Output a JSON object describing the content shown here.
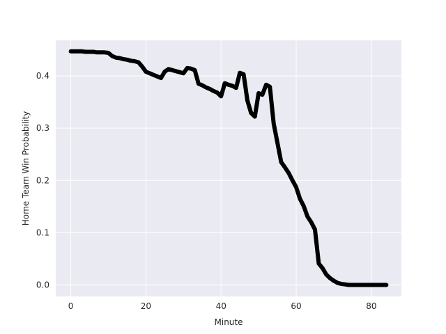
{
  "chart_data": {
    "type": "line",
    "title": "",
    "xlabel": "Minute",
    "ylabel": "Home Team Win Probability",
    "xlim": [
      -4,
      88
    ],
    "ylim": [
      -0.022,
      0.468
    ],
    "xticks": [
      0,
      20,
      40,
      60,
      80
    ],
    "yticks": [
      0.0,
      0.1,
      0.2,
      0.3,
      0.4
    ],
    "ytick_labels": [
      "0.0",
      "0.1",
      "0.2",
      "0.3",
      "0.4"
    ],
    "grid": true,
    "background": "#EAEAF2",
    "grid_color": "#FFFFFF",
    "line_color": "#000000",
    "series": [
      {
        "x": [
          0,
          1,
          2,
          3,
          4,
          5,
          6,
          7,
          8,
          9,
          10,
          11,
          12,
          13,
          14,
          15,
          16,
          17,
          18,
          19,
          20,
          21,
          22,
          23,
          24,
          25,
          26,
          27,
          28,
          29,
          30,
          31,
          32,
          33,
          34,
          35,
          36,
          37,
          38,
          39,
          40,
          41,
          42,
          43,
          44,
          45,
          46,
          47,
          48,
          49,
          50,
          51,
          52,
          53,
          54,
          55,
          56,
          57,
          58,
          59,
          60,
          61,
          62,
          63,
          64,
          65,
          66,
          67,
          68,
          69,
          70,
          71,
          72,
          73,
          74,
          75,
          76,
          77,
          78,
          79,
          80,
          81,
          82,
          83,
          84
        ],
        "y": [
          0.447,
          0.447,
          0.447,
          0.447,
          0.446,
          0.446,
          0.446,
          0.445,
          0.445,
          0.445,
          0.444,
          0.438,
          0.435,
          0.434,
          0.432,
          0.431,
          0.429,
          0.428,
          0.426,
          0.418,
          0.408,
          0.405,
          0.402,
          0.399,
          0.396,
          0.408,
          0.413,
          0.411,
          0.409,
          0.407,
          0.405,
          0.415,
          0.414,
          0.411,
          0.385,
          0.382,
          0.378,
          0.375,
          0.371,
          0.368,
          0.361,
          0.386,
          0.383,
          0.381,
          0.377,
          0.406,
          0.403,
          0.353,
          0.329,
          0.322,
          0.367,
          0.364,
          0.383,
          0.379,
          0.309,
          0.272,
          0.235,
          0.225,
          0.214,
          0.2,
          0.187,
          0.165,
          0.151,
          0.131,
          0.12,
          0.106,
          0.041,
          0.032,
          0.02,
          0.013,
          0.008,
          0.004,
          0.002,
          0.001,
          0.0,
          0.0,
          0.0,
          0.0,
          0.0,
          0.0,
          0.0,
          0.0,
          0.0,
          0.0,
          0.0
        ]
      }
    ]
  }
}
